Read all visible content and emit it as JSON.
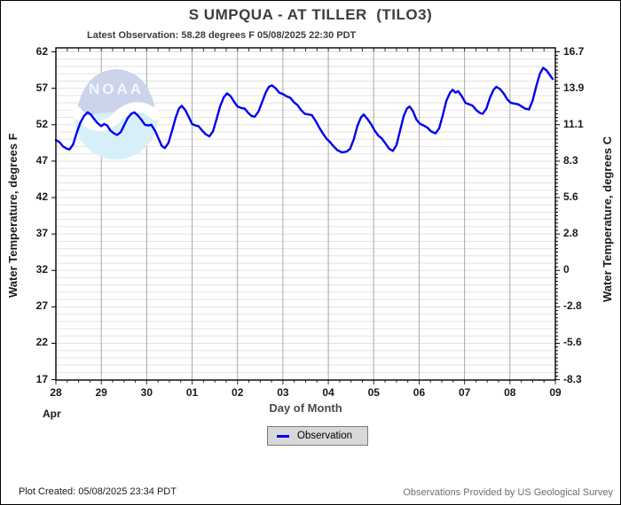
{
  "header": {
    "title": "S UMPQUA - AT TILLER  (TILO3)",
    "latest_observation": "Latest Observation: 58.28 degrees F 05/08/2025 22:30 PDT"
  },
  "footer": {
    "plot_created": "Plot Created: 05/08/2025 23:34 PDT",
    "source": "Observations Provided by US Geological Survey"
  },
  "watermark": {
    "name": "noaa-logo",
    "text": "NOAA"
  },
  "colors": {
    "line": "#0000ee",
    "grid_minor_horizontal": "#e2e2e2",
    "grid_vertical": "#a9a9a9",
    "frame": "#000000",
    "legend_bg": "#d8d8d8",
    "legend_border": "#7a7a7a",
    "logo_top": "#ccd4ec",
    "logo_bottom": "#d7eff8"
  },
  "chart_data": {
    "type": "line",
    "title": "S UMPQUA - AT TILLER  (TILO3)",
    "subtitle": "Latest Observation: 58.28 degrees F 05/08/2025 22:30 PDT",
    "xlabel": "Day of Month",
    "x_month_label": "Apr",
    "x_tick_labels": [
      "28",
      "29",
      "30",
      "01",
      "02",
      "03",
      "04",
      "05",
      "06",
      "07",
      "08",
      "09"
    ],
    "x_range_days": [
      0,
      11
    ],
    "x_minor_tick_step_days": 0.25,
    "ylabel_left": "Water Temperature, degrees F",
    "ylabel_right": "Water Temperature, degrees C",
    "y_ticks_f": [
      62,
      57,
      52,
      47,
      42,
      37,
      32,
      27,
      22,
      17
    ],
    "y_ticks_c": [
      "16.7",
      "13.9",
      "11.1",
      "8.3",
      "5.6",
      "2.8",
      "0",
      "-2.8",
      "-5.6",
      "-8.3"
    ],
    "ylim_f": [
      16.95,
      62.55
    ],
    "grid": "horizontal minor line every 1 degree F; vertical line at each day; minor ticks every 6 hours",
    "legend": {
      "position": "bottom-center",
      "entries": [
        {
          "label": "Observation",
          "color": "#0000ee"
        }
      ]
    },
    "series": [
      {
        "name": "Observation",
        "color": "#0000ee",
        "units": "degrees F",
        "x_units": "days since Apr 28 00:00",
        "points": [
          [
            0.0,
            49.9
          ],
          [
            0.08,
            49.6
          ],
          [
            0.16,
            49.0
          ],
          [
            0.24,
            48.7
          ],
          [
            0.3,
            48.6
          ],
          [
            0.38,
            49.3
          ],
          [
            0.46,
            50.9
          ],
          [
            0.54,
            52.3
          ],
          [
            0.62,
            53.2
          ],
          [
            0.7,
            53.7
          ],
          [
            0.77,
            53.4
          ],
          [
            0.84,
            52.8
          ],
          [
            0.92,
            52.2
          ],
          [
            1.0,
            51.8
          ],
          [
            1.06,
            52.1
          ],
          [
            1.13,
            51.9
          ],
          [
            1.2,
            51.2
          ],
          [
            1.28,
            50.8
          ],
          [
            1.35,
            50.6
          ],
          [
            1.43,
            51.0
          ],
          [
            1.5,
            51.9
          ],
          [
            1.58,
            52.9
          ],
          [
            1.66,
            53.5
          ],
          [
            1.73,
            53.7
          ],
          [
            1.8,
            53.3
          ],
          [
            1.88,
            52.7
          ],
          [
            1.96,
            52.0
          ],
          [
            2.04,
            51.9
          ],
          [
            2.1,
            52.0
          ],
          [
            2.18,
            51.2
          ],
          [
            2.26,
            50.1
          ],
          [
            2.33,
            49.1
          ],
          [
            2.4,
            48.8
          ],
          [
            2.48,
            49.5
          ],
          [
            2.56,
            51.2
          ],
          [
            2.64,
            53.0
          ],
          [
            2.71,
            54.2
          ],
          [
            2.77,
            54.6
          ],
          [
            2.85,
            54.0
          ],
          [
            2.93,
            53.0
          ],
          [
            3.0,
            52.1
          ],
          [
            3.07,
            51.9
          ],
          [
            3.14,
            51.8
          ],
          [
            3.22,
            51.2
          ],
          [
            3.3,
            50.7
          ],
          [
            3.38,
            50.4
          ],
          [
            3.46,
            51.1
          ],
          [
            3.54,
            52.8
          ],
          [
            3.62,
            54.6
          ],
          [
            3.7,
            55.8
          ],
          [
            3.77,
            56.3
          ],
          [
            3.85,
            55.9
          ],
          [
            3.92,
            55.2
          ],
          [
            4.0,
            54.5
          ],
          [
            4.08,
            54.3
          ],
          [
            4.16,
            54.2
          ],
          [
            4.24,
            53.6
          ],
          [
            4.31,
            53.2
          ],
          [
            4.38,
            53.1
          ],
          [
            4.46,
            53.8
          ],
          [
            4.54,
            55.1
          ],
          [
            4.62,
            56.4
          ],
          [
            4.69,
            57.2
          ],
          [
            4.76,
            57.4
          ],
          [
            4.84,
            57.0
          ],
          [
            4.92,
            56.4
          ],
          [
            5.0,
            56.2
          ],
          [
            5.08,
            55.9
          ],
          [
            5.16,
            55.7
          ],
          [
            5.24,
            55.1
          ],
          [
            5.32,
            54.7
          ],
          [
            5.4,
            54.0
          ],
          [
            5.48,
            53.5
          ],
          [
            5.56,
            53.4
          ],
          [
            5.64,
            53.3
          ],
          [
            5.72,
            52.5
          ],
          [
            5.8,
            51.6
          ],
          [
            5.88,
            50.8
          ],
          [
            5.96,
            50.1
          ],
          [
            6.04,
            49.6
          ],
          [
            6.12,
            49.0
          ],
          [
            6.2,
            48.5
          ],
          [
            6.3,
            48.2
          ],
          [
            6.4,
            48.3
          ],
          [
            6.48,
            48.7
          ],
          [
            6.56,
            50.0
          ],
          [
            6.64,
            51.8
          ],
          [
            6.72,
            53.0
          ],
          [
            6.78,
            53.4
          ],
          [
            6.86,
            52.8
          ],
          [
            6.94,
            52.1
          ],
          [
            7.02,
            51.2
          ],
          [
            7.1,
            50.5
          ],
          [
            7.18,
            50.1
          ],
          [
            7.26,
            49.4
          ],
          [
            7.34,
            48.7
          ],
          [
            7.42,
            48.4
          ],
          [
            7.5,
            49.2
          ],
          [
            7.58,
            51.2
          ],
          [
            7.66,
            53.2
          ],
          [
            7.73,
            54.2
          ],
          [
            7.79,
            54.5
          ],
          [
            7.86,
            53.9
          ],
          [
            7.94,
            52.7
          ],
          [
            8.02,
            52.1
          ],
          [
            8.1,
            51.9
          ],
          [
            8.18,
            51.6
          ],
          [
            8.26,
            51.1
          ],
          [
            8.36,
            50.8
          ],
          [
            8.44,
            51.5
          ],
          [
            8.52,
            53.3
          ],
          [
            8.6,
            55.3
          ],
          [
            8.68,
            56.4
          ],
          [
            8.74,
            56.8
          ],
          [
            8.8,
            56.4
          ],
          [
            8.86,
            56.6
          ],
          [
            8.94,
            55.9
          ],
          [
            9.02,
            55.0
          ],
          [
            9.1,
            54.8
          ],
          [
            9.18,
            54.6
          ],
          [
            9.26,
            54.0
          ],
          [
            9.34,
            53.6
          ],
          [
            9.4,
            53.5
          ],
          [
            9.48,
            54.2
          ],
          [
            9.56,
            55.7
          ],
          [
            9.64,
            56.8
          ],
          [
            9.7,
            57.2
          ],
          [
            9.78,
            56.9
          ],
          [
            9.86,
            56.3
          ],
          [
            9.94,
            55.5
          ],
          [
            10.02,
            55.0
          ],
          [
            10.1,
            54.9
          ],
          [
            10.18,
            54.8
          ],
          [
            10.26,
            54.5
          ],
          [
            10.34,
            54.2
          ],
          [
            10.42,
            54.1
          ],
          [
            10.5,
            55.3
          ],
          [
            10.58,
            57.3
          ],
          [
            10.66,
            59.0
          ],
          [
            10.73,
            59.8
          ],
          [
            10.8,
            59.5
          ],
          [
            10.87,
            58.9
          ],
          [
            10.94,
            58.28
          ]
        ]
      }
    ]
  }
}
